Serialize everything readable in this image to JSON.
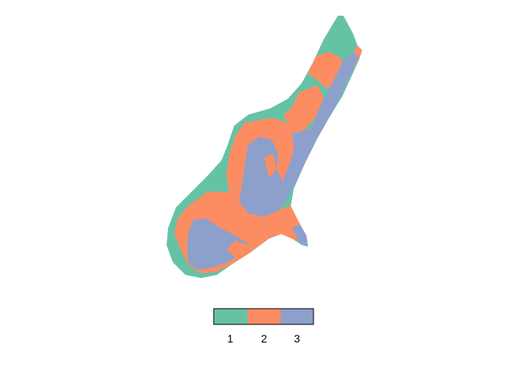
{
  "map": {
    "type": "categorical-raster",
    "classes": [
      {
        "label": "1",
        "color": "#66C2A5"
      },
      {
        "label": "2",
        "color": "#FC8D62"
      },
      {
        "label": "3",
        "color": "#8DA0CB"
      }
    ]
  },
  "legend": {
    "labels": [
      "1",
      "2",
      "3"
    ],
    "colors": [
      "#66C2A5",
      "#FC8D62",
      "#8DA0CB"
    ]
  }
}
